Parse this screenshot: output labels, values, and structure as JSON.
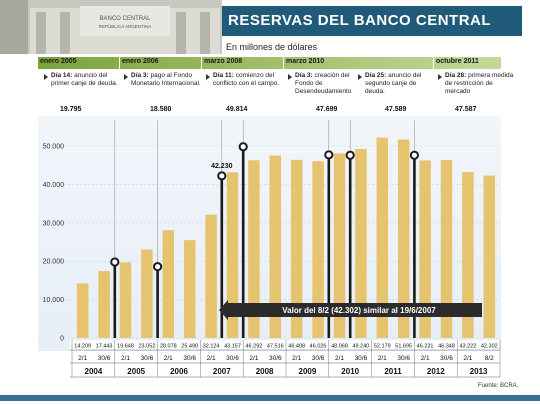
{
  "header": {
    "title": "RESERVAS DEL BANCO CENTRAL",
    "subtitle": "En millones de dólares"
  },
  "building_sign": {
    "line1": "BANCO CENTRAL",
    "line2": "REPÚBLICA ARGENTINA"
  },
  "timeline": [
    {
      "date": "enero 2005",
      "events": [
        {
          "day": "Día 14:",
          "text": "anuncio del primer canje de deuda.",
          "value": "19.795"
        }
      ]
    },
    {
      "date": "enero 2006",
      "events": [
        {
          "day": "Día 3:",
          "text": "pago al Fondo Monetario Internacional.",
          "value": "18.580"
        }
      ]
    },
    {
      "date": "marzo 2008",
      "events": [
        {
          "day": "Día 11:",
          "text": "comienzo del conflicto con el campo.",
          "value": "49.814"
        }
      ]
    },
    {
      "date": "marzo 2010",
      "events": [
        {
          "day": "Día 3:",
          "text": "creación del Fondo de Desendeudamiento",
          "value": "47.699"
        },
        {
          "day": "Día 25:",
          "text": "anuncio del segundo canje de deuda.",
          "value": "47.589"
        }
      ]
    },
    {
      "date": "octubre 2011",
      "events": [
        {
          "day": "Día 28:",
          "text": "primera medida de restricción de mercado",
          "value": "47.587"
        }
      ]
    }
  ],
  "annotation": "Valor del 8/2 (42.302) similar al 19/6/2007",
  "source": "Fuente: BCRA.",
  "colors": {
    "bar": "#e6c36e",
    "marker": "#1a1a1a",
    "title_bg": "#1f5a78",
    "timeline": "#7aa43a",
    "arrow": "#2b2b2b"
  },
  "chart_data": {
    "type": "bar",
    "ylim": [
      0,
      50000
    ],
    "yticks": [
      0,
      10000,
      20000,
      30000,
      40000,
      50000
    ],
    "ytick_labels": [
      "0",
      "10.000",
      "20.000",
      "30.000",
      "40.000",
      "50.000"
    ],
    "grid": true,
    "categories": [
      "2/1",
      "30/6",
      "2/1",
      "30/6",
      "2/1",
      "30/6",
      "2/1",
      "30/6",
      "2/1",
      "30/6",
      "2/1",
      "30/6",
      "2/1",
      "30/6",
      "2/1",
      "30/6",
      "2/1",
      "30/6",
      "2/1",
      "8/2"
    ],
    "values": [
      14209,
      17443,
      19648,
      23052,
      28078,
      25490,
      32124,
      43157,
      46292,
      47516,
      46408,
      46026,
      48068,
      49240,
      52179,
      51695,
      46231,
      46348,
      43222,
      42302
    ],
    "value_labels": [
      "14.209",
      "17.443",
      "19.648",
      "23.052",
      "28.078",
      "25.490",
      "32.124",
      "43.157",
      "46.292",
      "47.516",
      "46.408",
      "46.026",
      "48.068",
      "49.240",
      "52.179",
      "51.695",
      "46.231",
      "46.348",
      "43.222",
      "42.302"
    ],
    "years": [
      "2004",
      "2005",
      "2006",
      "2007",
      "2008",
      "2009",
      "2010",
      "2011",
      "2012",
      "2013"
    ],
    "event_markers": [
      {
        "value": 19795,
        "after_index": 1,
        "label": "19.795"
      },
      {
        "value": 18580,
        "after_index": 3,
        "label": "18.580"
      },
      {
        "value": 42230,
        "after_index": 6,
        "label": "42.230"
      },
      {
        "value": 49814,
        "after_index": 7,
        "label": "49.814"
      },
      {
        "value": 47699,
        "after_index": 11,
        "label": "47.699"
      },
      {
        "value": 47589,
        "after_index": 12,
        "label": "47.589"
      },
      {
        "value": 47587,
        "after_index": 15,
        "label": "47.587"
      }
    ]
  }
}
